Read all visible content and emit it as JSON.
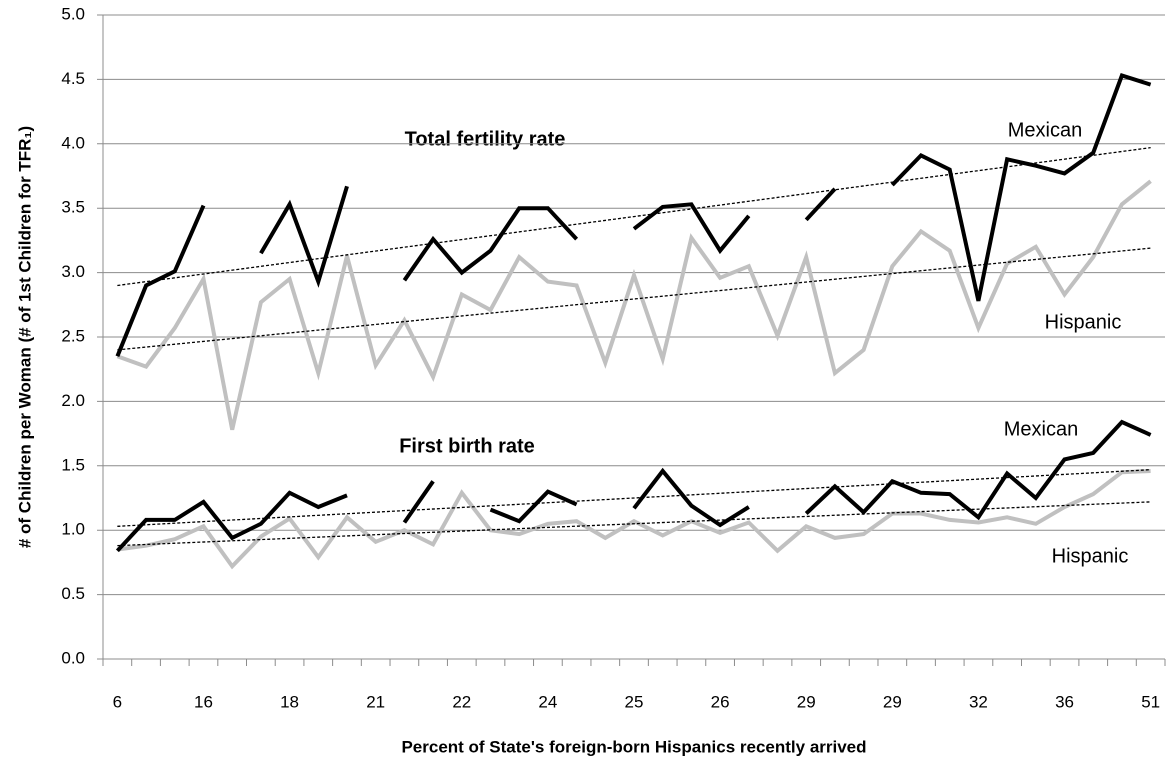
{
  "chart_data": {
    "type": "line",
    "xlabel": "Percent of State's foreign-born Hispanics  recently arrived",
    "ylabel": "# of Children per Woman (# of 1st Children for TFR₁)",
    "annotations": [
      "Total fertility rate",
      "First birth rate"
    ],
    "categories": [
      "6",
      null,
      null,
      "16",
      null,
      null,
      "18",
      null,
      null,
      "21",
      null,
      null,
      "22",
      null,
      null,
      "24",
      null,
      null,
      "25",
      null,
      null,
      "26",
      null,
      null,
      "29",
      null,
      null,
      "29",
      null,
      null,
      "32",
      null,
      null,
      "36",
      null,
      null,
      "51"
    ],
    "ylim": [
      0,
      5
    ],
    "yticks": [
      {
        "value": 0,
        "label": "0.0"
      },
      {
        "value": 0.5,
        "label": "0.5"
      },
      {
        "value": 1,
        "label": "1.0"
      },
      {
        "value": 1.5,
        "label": "1.5"
      },
      {
        "value": 2,
        "label": "2.0"
      },
      {
        "value": 2.5,
        "label": "2.5"
      },
      {
        "value": 3,
        "label": "3.0"
      },
      {
        "value": 3.5,
        "label": "3.5"
      },
      {
        "value": 4,
        "label": "4.0"
      },
      {
        "value": 4.5,
        "label": "4.5"
      },
      {
        "value": 5,
        "label": "5.0"
      }
    ],
    "grid": true,
    "series": [
      {
        "name": "Hispanic",
        "color": "#c0c0c0",
        "trend": [
          2.4,
          3.19
        ],
        "values": [
          2.35,
          2.27,
          2.57,
          2.95,
          1.78,
          2.77,
          2.95,
          2.22,
          3.13,
          2.28,
          2.63,
          2.19,
          2.83,
          2.71,
          3.12,
          2.93,
          2.9,
          2.3,
          2.98,
          2.33,
          3.27,
          2.96,
          3.05,
          2.51,
          3.12,
          2.22,
          2.4,
          3.05,
          3.32,
          3.17,
          2.57,
          3.07,
          3.2,
          2.83,
          3.12,
          3.53,
          3.71
        ]
      },
      {
        "name": "Mexican",
        "color": "#000000",
        "trend": [
          2.9,
          3.97
        ],
        "values": [
          2.35,
          2.9,
          3.01,
          3.52,
          null,
          3.15,
          3.53,
          2.93,
          3.67,
          null,
          2.94,
          3.26,
          3.0,
          3.17,
          3.5,
          3.5,
          3.26,
          null,
          3.34,
          3.51,
          3.53,
          3.17,
          3.44,
          null,
          3.41,
          3.65,
          null,
          3.68,
          3.91,
          3.8,
          2.78,
          3.88,
          3.83,
          3.77,
          3.93,
          4.53,
          4.46
        ]
      },
      {
        "name": "Hispanic",
        "color": "#c0c0c0",
        "trend": [
          0.88,
          1.22
        ],
        "values": [
          0.85,
          0.88,
          0.93,
          1.03,
          0.72,
          0.95,
          1.09,
          0.79,
          1.1,
          0.91,
          1.0,
          0.89,
          1.29,
          1.0,
          0.97,
          1.05,
          1.07,
          0.94,
          1.07,
          0.96,
          1.07,
          0.98,
          1.06,
          0.84,
          1.03,
          0.94,
          0.97,
          1.13,
          1.13,
          1.08,
          1.06,
          1.1,
          1.05,
          1.18,
          1.28,
          1.45,
          1.46
        ]
      },
      {
        "name": "Mexican",
        "color": "#000000",
        "trend": [
          1.03,
          1.47
        ],
        "values": [
          0.84,
          1.08,
          1.08,
          1.22,
          0.94,
          1.05,
          1.29,
          1.18,
          1.27,
          null,
          1.06,
          1.38,
          null,
          1.16,
          1.07,
          1.3,
          1.2,
          null,
          1.17,
          1.46,
          1.19,
          1.04,
          1.18,
          null,
          1.13,
          1.34,
          1.14,
          1.38,
          1.29,
          1.28,
          1.1,
          1.44,
          1.25,
          1.55,
          1.6,
          1.84,
          1.74
        ]
      }
    ]
  }
}
